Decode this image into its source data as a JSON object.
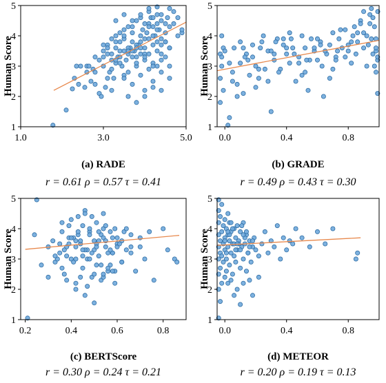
{
  "chart_data": [
    {
      "type": "scatter",
      "caption": "(a) RADE",
      "stats": "r = 0.61  ρ = 0.57  τ = 0.41",
      "ylabel": "Human Score",
      "xlim": [
        1.0,
        5.0
      ],
      "ylim": [
        1,
        5
      ],
      "xticks": [
        1.0,
        3.0,
        5.0
      ],
      "xtick_labels": [
        "1.0",
        "3.0",
        "5.0"
      ],
      "yticks": [
        1,
        2,
        3,
        4,
        5
      ],
      "ytick_labels": [
        "1",
        "2",
        "3",
        "4",
        "5"
      ],
      "fit_line": {
        "x": [
          1.8,
          5.0
        ],
        "y": [
          2.2,
          4.45
        ]
      },
      "points": {
        "x": [
          1.78,
          2.1,
          2.25,
          2.3,
          2.35,
          2.45,
          2.6,
          2.55,
          2.7,
          2.75,
          2.8,
          2.9,
          2.95,
          3.05,
          3.1,
          2.65,
          2.8,
          3.0,
          3.15,
          3.2,
          3.25,
          3.3,
          3.35,
          3.4,
          3.45,
          3.5,
          3.55,
          3.6,
          3.65,
          3.7,
          3.75,
          3.8,
          3.85,
          3.9,
          3.95,
          4.0,
          4.05,
          4.1,
          4.15,
          4.2,
          4.25,
          4.3,
          4.35,
          4.4,
          4.5,
          4.55,
          4.6,
          4.7,
          4.8,
          4.9,
          3.0,
          3.1,
          3.2,
          3.3,
          3.4,
          3.5,
          3.6,
          3.7,
          3.8,
          3.9,
          4.0,
          4.1,
          4.2,
          4.3,
          4.4,
          4.5,
          3.2,
          3.4,
          3.6,
          3.8,
          4.0,
          4.2,
          4.4,
          3.3,
          3.5,
          3.7,
          3.9,
          4.1,
          4.3,
          3.0,
          3.2,
          3.4,
          3.6,
          3.8,
          4.0,
          4.2,
          4.4,
          4.6,
          3.5,
          3.7,
          3.9,
          4.1,
          4.3,
          4.5,
          2.4,
          2.6,
          2.8,
          3.0,
          3.2,
          3.4,
          3.6,
          3.8,
          4.0,
          4.2,
          4.4,
          4.6,
          3.1,
          3.3,
          3.5,
          3.7,
          3.9,
          4.1,
          4.3,
          4.5,
          3.8,
          4.0,
          4.2,
          4.4,
          4.6,
          4.8,
          2.9,
          3.1,
          3.3,
          3.5,
          3.7,
          3.9,
          4.1,
          4.3,
          4.0,
          4.2,
          4.4,
          4.6,
          3.6,
          3.8,
          4.0,
          4.2,
          4.4,
          4.6,
          3.3,
          3.5,
          3.7,
          3.9,
          4.1,
          4.3,
          4.5,
          4.7,
          4.9
        ],
        "y": [
          1.05,
          1.55,
          2.25,
          2.6,
          3.0,
          3.0,
          3.0,
          2.3,
          2.5,
          2.9,
          2.8,
          2.1,
          2.0,
          2.3,
          2.6,
          3.0,
          2.4,
          3.0,
          2.8,
          2.2,
          2.6,
          3.1,
          3.3,
          3.5,
          3.0,
          2.7,
          3.2,
          3.4,
          3.6,
          3.8,
          3.5,
          3.3,
          3.7,
          4.0,
          4.2,
          3.9,
          4.1,
          4.4,
          4.6,
          4.3,
          4.0,
          4.7,
          4.2,
          4.5,
          3.8,
          4.6,
          4.3,
          4.8,
          4.6,
          4.1,
          3.5,
          3.7,
          3.4,
          3.6,
          3.8,
          3.9,
          3.6,
          3.5,
          3.7,
          3.4,
          3.6,
          3.9,
          4.0,
          3.8,
          3.7,
          4.1,
          3.2,
          3.3,
          3.5,
          3.6,
          3.4,
          3.7,
          3.9,
          4.0,
          4.2,
          4.1,
          3.8,
          4.3,
          4.4,
          3.3,
          2.9,
          3.1,
          2.8,
          3.0,
          3.2,
          3.1,
          3.4,
          3.6,
          2.6,
          2.4,
          2.7,
          2.9,
          3.0,
          3.3,
          2.4,
          2.8,
          3.3,
          3.7,
          3.9,
          4.1,
          4.3,
          4.5,
          4.4,
          4.6,
          4.7,
          4.9,
          3.4,
          3.2,
          3.5,
          3.3,
          3.6,
          3.4,
          3.5,
          3.8,
          3.1,
          3.3,
          3.0,
          3.2,
          3.6,
          4.0,
          3.2,
          3.6,
          3.8,
          4.0,
          4.3,
          4.6,
          4.8,
          4.2,
          2.0,
          2.3,
          2.2,
          2.6,
          2.0,
          1.8,
          2.2,
          2.5,
          2.8,
          3.0,
          4.5,
          4.7,
          4.5,
          4.7,
          4.9,
          5.0,
          4.4,
          4.4,
          4.2
        ]
      }
    },
    {
      "type": "scatter",
      "caption": "(b) GRADE",
      "stats": "r = 0.49  ρ = 0.43  τ = 0.30",
      "ylabel": "Human Score",
      "xlim": [
        -0.05,
        1.0
      ],
      "ylim": [
        1,
        5
      ],
      "xticks": [
        0.0,
        0.4,
        0.8
      ],
      "xtick_labels": [
        "0.0",
        "0.4",
        "0.8"
      ],
      "yticks": [
        1,
        2,
        3,
        4,
        5
      ],
      "ytick_labels": [
        "1",
        "2",
        "3",
        "4",
        "5"
      ],
      "fit_line": {
        "x": [
          -0.05,
          1.0
        ],
        "y": [
          2.85,
          3.85
        ]
      },
      "points": {
        "x": [
          -0.03,
          -0.02,
          -0.01,
          -0.03,
          -0.02,
          -0.01,
          -0.03,
          -0.02,
          0.0,
          0.02,
          0.03,
          0.05,
          0.06,
          0.08,
          0.1,
          0.12,
          0.14,
          0.16,
          0.18,
          0.2,
          0.22,
          0.24,
          0.26,
          0.28,
          0.3,
          0.32,
          0.34,
          0.36,
          0.38,
          0.4,
          0.42,
          0.44,
          0.46,
          0.48,
          0.5,
          0.52,
          0.54,
          0.56,
          0.58,
          0.6,
          0.62,
          0.64,
          0.66,
          0.68,
          0.7,
          0.72,
          0.74,
          0.76,
          0.78,
          0.8,
          0.82,
          0.84,
          0.86,
          0.88,
          0.9,
          0.92,
          0.94,
          0.96,
          0.98,
          1.0,
          0.05,
          0.1,
          0.15,
          0.2,
          0.25,
          0.3,
          0.35,
          0.4,
          0.45,
          0.5,
          0.55,
          0.6,
          0.65,
          0.7,
          0.75,
          0.8,
          0.85,
          0.9,
          0.95,
          0.99,
          0.08,
          0.18,
          0.28,
          0.38,
          0.48,
          0.58,
          0.68,
          0.78,
          0.88,
          0.98,
          0.12,
          0.22,
          0.32,
          0.42,
          0.52,
          0.62,
          0.72,
          0.82,
          0.92,
          0.97,
          0.03,
          0.13,
          0.23,
          0.33,
          0.43,
          0.53,
          0.63,
          0.73,
          0.83,
          0.93,
          0.96,
          0.99,
          0.95,
          0.97,
          0.98,
          0.94,
          0.9,
          0.86,
          0.98,
          0.99
        ],
        "y": [
          3.4,
          3.0,
          2.2,
          1.8,
          4.0,
          3.6,
          2.6,
          3.3,
          3.5,
          1.05,
          1.3,
          2.8,
          3.6,
          2.4,
          3.1,
          2.1,
          3.4,
          2.7,
          3.3,
          3.0,
          2.6,
          3.8,
          2.9,
          3.5,
          1.5,
          3.2,
          3.9,
          2.9,
          3.7,
          3.4,
          3.1,
          3.6,
          2.5,
          3.3,
          4.0,
          3.6,
          2.2,
          3.9,
          3.5,
          3.2,
          3.8,
          2.0,
          3.4,
          3.7,
          4.1,
          3.3,
          3.9,
          3.6,
          4.2,
          3.5,
          3.1,
          4.3,
          3.8,
          4.5,
          3.6,
          4.0,
          4.7,
          3.4,
          3.9,
          4.8,
          2.5,
          3.8,
          3.2,
          2.3,
          4.0,
          3.5,
          2.8,
          3.6,
          3.4,
          2.7,
          3.2,
          3.9,
          3.5,
          2.9,
          4.2,
          3.7,
          3.4,
          4.1,
          3.9,
          2.1,
          2.0,
          3.7,
          2.5,
          3.9,
          3.1,
          3.6,
          2.6,
          3.3,
          4.4,
          3.5,
          3.6,
          2.9,
          3.4,
          4.1,
          2.8,
          3.7,
          3.2,
          3.8,
          3.0,
          4.3,
          3.1,
          3.3,
          3.6,
          3.8,
          3.9,
          3.2,
          3.0,
          3.5,
          4.0,
          3.7,
          4.6,
          3.2,
          4.9,
          3.0,
          3.6,
          4.4,
          4.8,
          4.1,
          2.8,
          3.3
        ]
      }
    },
    {
      "type": "scatter",
      "caption": "(c) BERTScore",
      "stats": "r = 0.30  ρ = 0.24  τ = 0.21",
      "ylabel": "Human Score",
      "xlim": [
        0.18,
        0.9
      ],
      "ylim": [
        1,
        5
      ],
      "xticks": [
        0.2,
        0.4,
        0.6,
        0.8
      ],
      "xtick_labels": [
        "0.2",
        "0.4",
        "0.6",
        "0.8"
      ],
      "yticks": [
        1,
        2,
        3,
        4,
        5
      ],
      "ytick_labels": [
        "1",
        "2",
        "3",
        "4",
        "5"
      ],
      "fit_line": {
        "x": [
          0.2,
          0.87
        ],
        "y": [
          3.32,
          3.78
        ]
      },
      "points": {
        "x": [
          0.21,
          0.25,
          0.24,
          0.27,
          0.3,
          0.32,
          0.33,
          0.35,
          0.36,
          0.37,
          0.38,
          0.39,
          0.4,
          0.41,
          0.42,
          0.43,
          0.44,
          0.45,
          0.46,
          0.47,
          0.48,
          0.49,
          0.5,
          0.51,
          0.52,
          0.53,
          0.54,
          0.55,
          0.56,
          0.57,
          0.58,
          0.59,
          0.6,
          0.62,
          0.64,
          0.66,
          0.68,
          0.7,
          0.72,
          0.74,
          0.76,
          0.8,
          0.82,
          0.85,
          0.86,
          0.35,
          0.38,
          0.41,
          0.44,
          0.47,
          0.5,
          0.53,
          0.56,
          0.59,
          0.62,
          0.36,
          0.39,
          0.42,
          0.45,
          0.48,
          0.51,
          0.54,
          0.57,
          0.6,
          0.4,
          0.43,
          0.46,
          0.49,
          0.52,
          0.55,
          0.58,
          0.42,
          0.45,
          0.48,
          0.51,
          0.54,
          0.57,
          0.6,
          0.63,
          0.66,
          0.37,
          0.4,
          0.43,
          0.46,
          0.49,
          0.52,
          0.55,
          0.58,
          0.61,
          0.64,
          0.44,
          0.47,
          0.5,
          0.53,
          0.56,
          0.59,
          0.34,
          0.38,
          0.42,
          0.46,
          0.5,
          0.54,
          0.58,
          0.62,
          0.66,
          0.7,
          0.3,
          0.33,
          0.36,
          0.39,
          0.42,
          0.45,
          0.48,
          0.51,
          0.54
        ],
        "y": [
          1.05,
          5.0,
          3.8,
          2.8,
          2.4,
          3.6,
          2.9,
          3.2,
          3.9,
          2.5,
          3.4,
          4.1,
          3.0,
          3.7,
          2.2,
          4.4,
          3.5,
          2.7,
          4.6,
          3.3,
          3.9,
          2.4,
          3.6,
          4.2,
          3.1,
          2.8,
          4.5,
          3.4,
          2.6,
          3.9,
          3.2,
          4.0,
          3.5,
          2.9,
          3.3,
          3.8,
          2.6,
          3.4,
          3.0,
          3.9,
          2.3,
          4.0,
          3.3,
          3.0,
          2.9,
          3.5,
          3.1,
          2.9,
          3.6,
          3.0,
          3.3,
          3.8,
          3.2,
          2.6,
          3.6,
          4.2,
          3.7,
          3.4,
          3.1,
          4.0,
          3.5,
          3.7,
          2.8,
          3.4,
          4.3,
          3.8,
          3.3,
          4.4,
          3.9,
          3.6,
          3.2,
          3.6,
          4.1,
          3.8,
          3.4,
          4.0,
          3.3,
          3.7,
          3.9,
          3.4,
          3.3,
          3.7,
          3.9,
          4.5,
          3.2,
          3.6,
          4.1,
          3.7,
          3.5,
          4.0,
          2.4,
          2.1,
          2.5,
          2.3,
          2.7,
          2.2,
          3.0,
          2.3,
          2.0,
          1.8,
          1.55,
          2.4,
          2.6,
          2.9,
          3.2,
          3.7,
          3.4,
          3.1,
          2.7,
          3.5,
          3.0,
          3.3,
          3.0,
          2.8,
          2.5
        ]
      }
    },
    {
      "type": "scatter",
      "caption": "(d) METEOR",
      "stats": "r = 0.20  ρ = 0.19  τ = 0.13",
      "ylabel": "Human Score",
      "xlim": [
        -0.05,
        1.0
      ],
      "ylim": [
        1,
        5
      ],
      "xticks": [
        0.0,
        0.4,
        0.8
      ],
      "xtick_labels": [
        "0.0",
        "0.4",
        "0.8"
      ],
      "yticks": [
        1,
        2,
        3,
        4,
        5
      ],
      "ytick_labels": [
        "1",
        "2",
        "3",
        "4",
        "5"
      ],
      "fit_line": {
        "x": [
          -0.05,
          0.88
        ],
        "y": [
          3.45,
          3.7
        ]
      },
      "points": {
        "x": [
          -0.04,
          -0.04,
          -0.04,
          -0.04,
          -0.04,
          -0.04,
          -0.04,
          -0.04,
          -0.04,
          -0.03,
          -0.03,
          -0.03,
          -0.03,
          -0.03,
          -0.02,
          -0.02,
          -0.02,
          -0.02,
          -0.01,
          -0.01,
          -0.01,
          0.0,
          0.0,
          0.0,
          0.0,
          0.01,
          0.01,
          0.01,
          0.02,
          0.02,
          0.02,
          0.03,
          0.03,
          0.03,
          0.04,
          0.04,
          0.05,
          0.05,
          0.06,
          0.06,
          0.07,
          0.07,
          0.08,
          0.08,
          0.09,
          0.1,
          0.1,
          0.11,
          0.12,
          0.12,
          0.13,
          0.14,
          0.15,
          0.16,
          0.17,
          0.18,
          0.19,
          0.2,
          0.22,
          0.24,
          0.26,
          0.28,
          0.3,
          0.32,
          0.34,
          0.36,
          0.38,
          0.4,
          0.42,
          0.44,
          0.46,
          0.5,
          0.55,
          0.6,
          0.65,
          0.7,
          0.85,
          0.86,
          0.0,
          0.02,
          0.04,
          0.06,
          0.08,
          0.1,
          0.12,
          0.14,
          0.16,
          0.18,
          0.01,
          0.03,
          0.05,
          0.07,
          0.09,
          0.11,
          0.13,
          0.15,
          0.02,
          0.06,
          0.1,
          0.14,
          0.18,
          0.22,
          0.04,
          0.08,
          0.12,
          0.16
        ],
        "y": [
          1.05,
          2.0,
          2.5,
          3.0,
          3.4,
          3.8,
          4.2,
          4.6,
          5.0,
          1.6,
          2.7,
          3.2,
          3.6,
          4.4,
          2.2,
          3.1,
          3.9,
          4.8,
          2.9,
          3.5,
          4.1,
          2.4,
          3.3,
          3.7,
          4.3,
          2.6,
          3.0,
          4.0,
          3.4,
          3.8,
          4.5,
          2.8,
          3.6,
          4.2,
          3.2,
          3.9,
          2.5,
          3.5,
          3.1,
          4.0,
          2.9,
          3.7,
          3.3,
          4.1,
          3.6,
          2.7,
          3.9,
          3.4,
          3.0,
          4.2,
          3.5,
          3.8,
          3.2,
          3.6,
          2.9,
          3.4,
          3.7,
          3.3,
          2.4,
          3.5,
          3.9,
          3.2,
          3.6,
          3.4,
          4.1,
          3.0,
          3.7,
          3.3,
          3.6,
          3.5,
          4.0,
          3.7,
          3.4,
          3.9,
          3.5,
          4.0,
          3.0,
          3.2,
          3.6,
          2.2,
          2.3,
          1.8,
          2.0,
          1.5,
          2.2,
          2.6,
          2.3,
          1.8,
          3.2,
          3.8,
          4.0,
          3.3,
          3.5,
          4.1,
          3.7,
          3.2,
          3.9,
          3.5,
          3.3,
          3.9,
          3.6,
          3.1,
          4.2,
          3.5,
          3.8,
          3.4
        ]
      }
    }
  ]
}
